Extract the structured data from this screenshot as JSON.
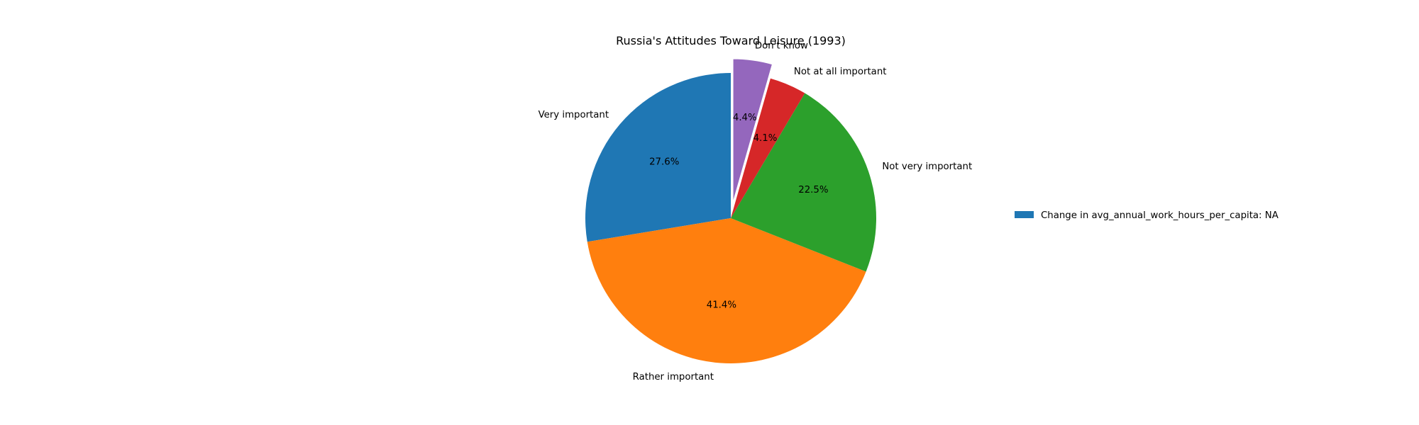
{
  "chart_data": {
    "type": "pie",
    "title": "Russia's Attitudes Toward Leisure (1993)",
    "slices": [
      {
        "label": "Very important",
        "value": 27.6,
        "pct_label": "27.6%",
        "color": "#1f77b4",
        "exploded": false
      },
      {
        "label": "Rather important",
        "value": 41.4,
        "pct_label": "41.4%",
        "color": "#ff7f0e",
        "exploded": false
      },
      {
        "label": "Not very important",
        "value": 22.5,
        "pct_label": "22.5%",
        "color": "#2ca02c",
        "exploded": false
      },
      {
        "label": "Not at all important",
        "value": 4.1,
        "pct_label": "4.1%",
        "color": "#d62728",
        "exploded": false
      },
      {
        "label": "Don't know",
        "value": 4.4,
        "pct_label": "4.4%",
        "color": "#9467bd",
        "exploded": true
      }
    ],
    "direction": "counterclockwise",
    "start_angle_deg": 90,
    "legend": {
      "placement": "right",
      "entries": [
        {
          "label": "Change in avg_annual_work_hours_per_capita: NA",
          "color": "#1f77b4"
        }
      ]
    }
  }
}
